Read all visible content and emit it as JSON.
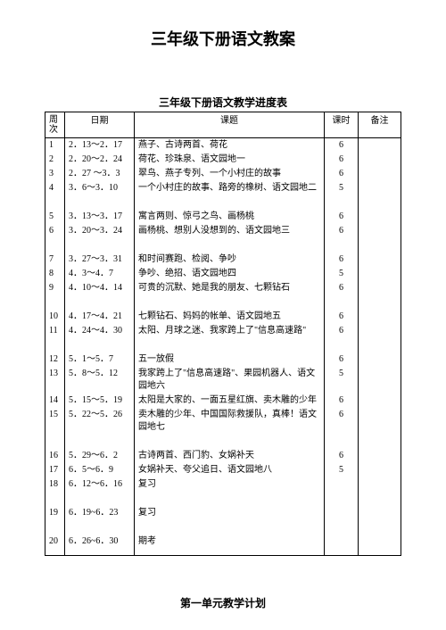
{
  "titles": {
    "main": "三年级下册语文教案",
    "schedule": "三年级下册语文教学进度表",
    "footer": "第一单元教学计划"
  },
  "headers": {
    "week": "周次",
    "date": "日期",
    "topic": "课题",
    "hours": "课时",
    "notes": "备注"
  },
  "rows": [
    {
      "week": "1",
      "date": "2．13～2．17",
      "topic": "燕子、古诗两首、荷花",
      "hours": "6",
      "notes": ""
    },
    {
      "week": "2",
      "date": "2．20～2．24",
      "topic": "荷花、珍珠泉、语文园地一",
      "hours": "6",
      "notes": ""
    },
    {
      "week": "3",
      "date": "2．27 ～3．3",
      "topic": "翠鸟、燕子专列、一个小村庄的故事",
      "hours": "6",
      "notes": ""
    },
    {
      "week": "4",
      "date": "3．6～3．10",
      "topic": "一个小村庄的故事、路旁的橡树、语文园地二",
      "hours": "5",
      "notes": ""
    },
    {
      "week": "5",
      "date": "3．13～3．17",
      "topic": "寓言两则、惊弓之鸟、画杨桃",
      "hours": "6",
      "notes": ""
    },
    {
      "week": "6",
      "date": "3．20～3．24",
      "topic": "画杨桃、想别人没想到的、语文园地三",
      "hours": "6",
      "notes": ""
    },
    {
      "week": "7",
      "date": "3．27～3．31",
      "topic": "和时间赛跑、检阅、争吵",
      "hours": "6",
      "notes": ""
    },
    {
      "week": "8",
      "date": "4．3～4．7",
      "topic": "争吵、绝招、语文园地四",
      "hours": "5",
      "notes": ""
    },
    {
      "week": "9",
      "date": "4．10～4．14",
      "topic": "可贵的沉默、她是我的朋友、七颗钻石",
      "hours": "6",
      "notes": ""
    },
    {
      "week": "10",
      "date": "4．17～4．21",
      "topic": "七颗钻石、妈妈的帐单、语文园地五",
      "hours": "6",
      "notes": ""
    },
    {
      "week": "11",
      "date": "4．24～4．30",
      "topic": "太阳、月球之迷、我家跨上了\"信息高速路\"",
      "hours": "6",
      "notes": ""
    },
    {
      "week": "12",
      "date": "5．1～5．7",
      "topic": "五一放假",
      "hours": "6",
      "notes": ""
    },
    {
      "week": "13",
      "date": "5．8～5．12",
      "topic": "我家跨上了\"信息高速路\"、果园机器人、语文园地六",
      "hours": "5",
      "notes": ""
    },
    {
      "week": "14",
      "date": "5．15～5．19",
      "topic": "太阳是大家的、一面五星红旗、卖木雕的少年",
      "hours": "6",
      "notes": ""
    },
    {
      "week": "15",
      "date": "5．22～5．26",
      "topic": "卖木雕的少年、中国国际救援队，真棒！语文园地七",
      "hours": "6",
      "notes": ""
    },
    {
      "week": "16",
      "date": "5．29～6．2",
      "topic": "古诗两首、西门豹、女娲补天",
      "hours": "6",
      "notes": ""
    },
    {
      "week": "17",
      "date": "6．5～6．9",
      "topic": "女娲补天、夸父追日、语文园地八",
      "hours": "5",
      "notes": ""
    },
    {
      "week": "18",
      "date": "6．12～6．16",
      "topic": "复习",
      "hours": "",
      "notes": ""
    },
    {
      "week": "19",
      "date": "6．19~6．23",
      "topic": "复习",
      "hours": "",
      "notes": ""
    },
    {
      "week": "20",
      "date": "6．26~6．30",
      "topic": "期考",
      "hours": "",
      "notes": ""
    }
  ]
}
